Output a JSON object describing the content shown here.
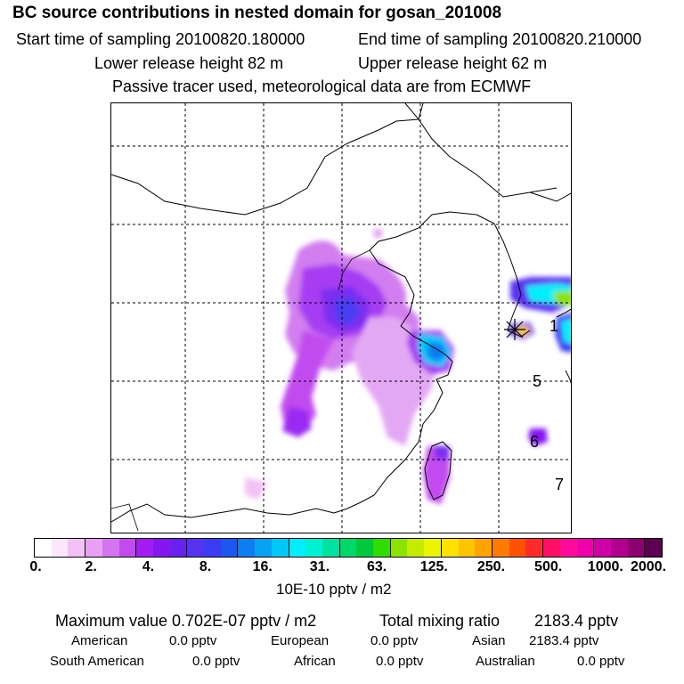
{
  "header": {
    "title": "BC  source contributions in nested domain for gosan_201008",
    "start_label": "Start time of sampling 20100820.180000",
    "end_label": "End time of sampling 20100820.210000",
    "lower_label": "Lower release height   82 m",
    "upper_label": "Upper release height   62 m",
    "tracer_note": "Passive tracer used, meteorological data are from ECMWF"
  },
  "map": {
    "number_labels": [
      "1",
      "5",
      "6",
      "7"
    ]
  },
  "legend": {
    "ticks": [
      "0.",
      "2.",
      "4.",
      "8.",
      "16.",
      "31.",
      "63.",
      "125.",
      "250.",
      "500.",
      "1000.",
      "2000."
    ],
    "colors": [
      "#ffffff",
      "#fbe6fb",
      "#f2c2f6",
      "#e9a0f2",
      "#d474ee",
      "#c24bf0",
      "#a31df2",
      "#8616f0",
      "#6a20ee",
      "#5533f0",
      "#3c3cf5",
      "#1c57ef",
      "#0c7df2",
      "#08a2f4",
      "#00c8f7",
      "#00eefb",
      "#00f0d2",
      "#00e3a0",
      "#00d86a",
      "#00c83c",
      "#2fde00",
      "#8de300",
      "#c4ec00",
      "#ecf500",
      "#ffe100",
      "#ffc400",
      "#ffa300",
      "#ff7a00",
      "#ff5200",
      "#ff2a2a",
      "#ff1064",
      "#ff0a9a",
      "#ee00aa",
      "#d000a8",
      "#b2008e",
      "#8e0072",
      "#5e0052"
    ],
    "unit": "10E-10 pptv / m2"
  },
  "stats": {
    "max_label": "Maximum value  0.702E-07 pptv / m2",
    "total_label": "Total mixing ratio",
    "total_value": "2183.4 pptv",
    "american_label": "American",
    "american_value": "0.0 pptv",
    "european_label": "European",
    "european_value": "0.0 pptv",
    "asian_label": "Asian",
    "asian_value": "2183.4 pptv",
    "south_american_label": "South American",
    "south_american_value": "0.0 pptv",
    "african_label": "African",
    "african_value": "0.0 pptv",
    "australian_label": "Australian",
    "australian_value": "0.0 pptv"
  }
}
